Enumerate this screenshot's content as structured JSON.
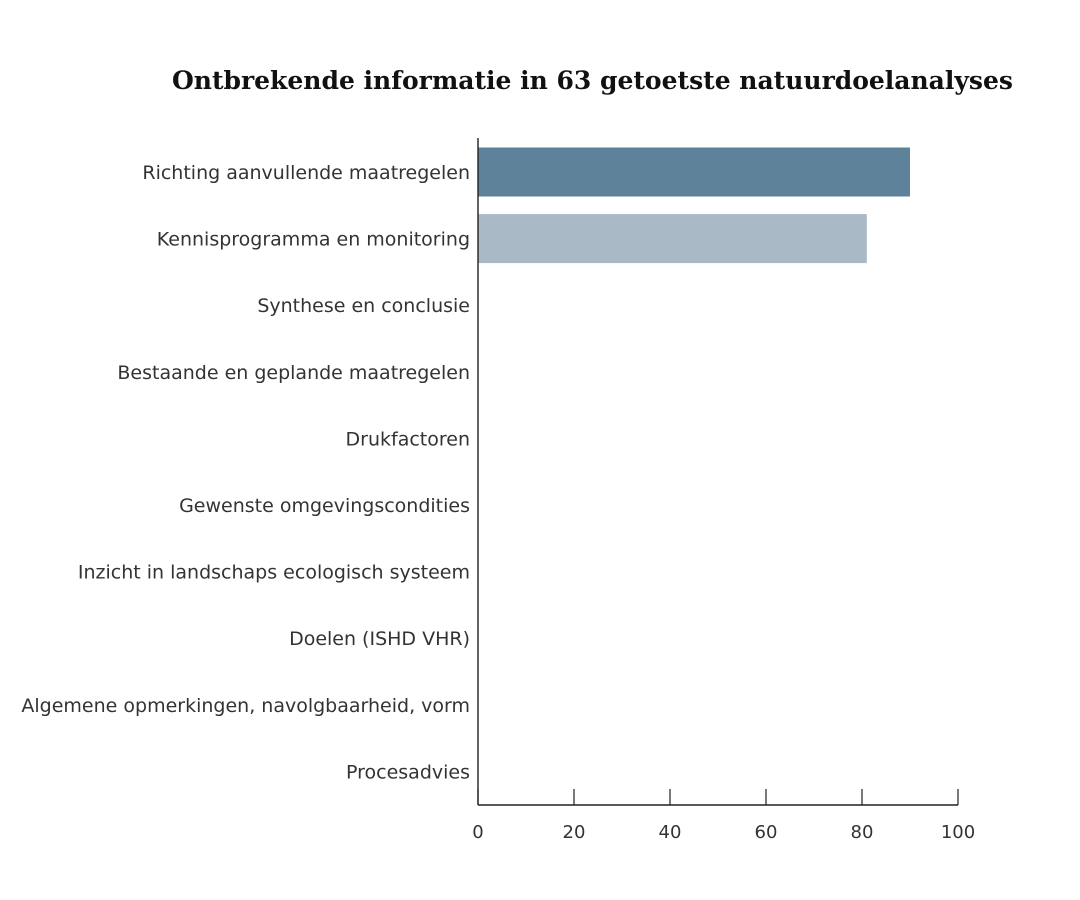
{
  "chart_data": {
    "type": "bar",
    "orientation": "horizontal",
    "title": "Ontbrekende informatie in 63 getoetste natuurdoelanalyses",
    "xlabel": "",
    "ylabel": "",
    "categories": [
      "Richting aanvullende maatregelen",
      "Kennisprogramma en monitoring",
      "Synthese en conclusie",
      "Bestaande en geplande maatregelen",
      "Drukfactoren",
      "Gewenste omgevingscondities",
      "Inzicht in landschaps ecologisch systeem",
      "Doelen (ISHD VHR)",
      "Algemene opmerkingen, navolgbaarheid, vorm",
      "Procesadvies"
    ],
    "values": [
      90,
      81,
      null,
      null,
      null,
      null,
      null,
      null,
      null,
      null
    ],
    "bar_colors": [
      "#5e8299",
      "#a9b9c6"
    ],
    "xlim": [
      0,
      100
    ],
    "xticks": [
      0,
      20,
      40,
      60,
      80,
      100
    ],
    "grid": false,
    "legend": "none"
  }
}
